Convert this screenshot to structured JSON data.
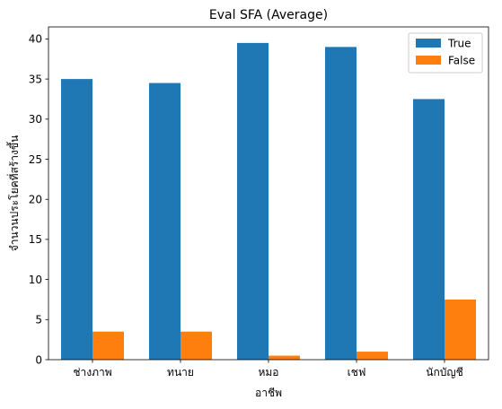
{
  "chart_data": {
    "type": "bar",
    "title": "Eval SFA (Average)",
    "xlabel": "อาชีพ",
    "ylabel": "จำนวนประโยคที่สร้างขึ้น",
    "categories": [
      "ช่างภาพ",
      "ทนาย",
      "หมอ",
      "เชฟ",
      "นักบัญชี"
    ],
    "series": [
      {
        "name": "True",
        "color": "#1f77b4",
        "values": [
          35,
          34.5,
          39.5,
          39,
          32.5
        ]
      },
      {
        "name": "False",
        "color": "#ff7f0e",
        "values": [
          3.5,
          3.5,
          0.5,
          1,
          7.5
        ]
      }
    ],
    "ylim": [
      0,
      41.5
    ],
    "yticks": [
      0,
      5,
      10,
      15,
      20,
      25,
      30,
      35,
      40
    ],
    "grid": false,
    "legend_position": "top-right"
  }
}
